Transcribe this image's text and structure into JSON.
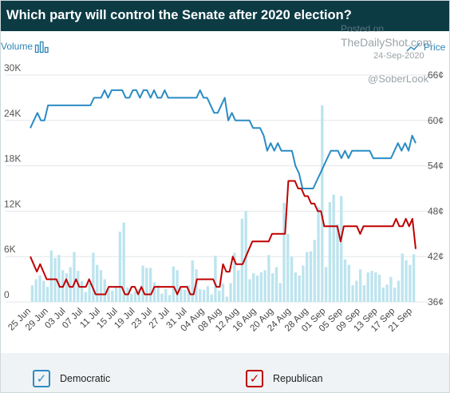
{
  "title": "Which party will control the Senate after 2020 election?",
  "header": {
    "volume_label": "Volume",
    "price_label": "Price"
  },
  "watermark": {
    "posted_on": "Posted on",
    "site": "TheDailyShot.com",
    "date": "24-Sep-2020",
    "handle": "@SoberLook"
  },
  "legend": {
    "democratic": "Democratic",
    "republican": "Republican"
  },
  "colors": {
    "democratic": "#2b8cc4",
    "republican": "#c00000",
    "volume": "#bce4ee",
    "title_bg": "#0c3b44"
  },
  "chart_data": {
    "type": "line",
    "x_tick_labels": [
      "25 Jun",
      "29 Jun",
      "03 Jul",
      "07 Jul",
      "11 Jul",
      "15 Jul",
      "19 Jul",
      "23 Jul",
      "27 Jul",
      "31 Jul",
      "04 Aug",
      "08 Aug",
      "12 Aug",
      "16 Aug",
      "20 Aug",
      "24 Aug",
      "28 Aug",
      "01 Sep",
      "05 Sep",
      "09 Sep",
      "13 Sep",
      "17 Sep",
      "21 Sep"
    ],
    "left_axis": {
      "ticks": [
        "0",
        "6K",
        "12K",
        "18K",
        "24K",
        "30K"
      ],
      "range": [
        0,
        30000
      ]
    },
    "right_axis": {
      "ticks": [
        "36¢",
        "42¢",
        "48¢",
        "54¢",
        "60¢",
        "66¢"
      ],
      "range": [
        36,
        66
      ]
    },
    "grid": true,
    "series": [
      {
        "name": "Democratic",
        "axis": "right",
        "values": [
          59,
          60,
          61,
          60,
          60,
          62,
          62,
          62,
          62,
          62,
          62,
          62,
          62,
          62,
          62,
          62,
          62,
          62,
          63,
          63,
          63,
          64,
          63,
          64,
          64,
          64,
          64,
          63,
          63,
          64,
          64,
          63,
          64,
          64,
          63,
          64,
          63,
          63,
          64,
          63,
          63,
          63,
          63,
          63,
          63,
          63,
          63,
          63,
          64,
          63,
          63,
          62,
          61,
          61,
          62,
          63,
          60,
          61,
          60,
          60,
          60,
          60,
          60,
          59,
          59,
          59,
          58,
          56,
          57,
          56,
          57,
          56,
          56,
          56,
          56,
          54,
          53,
          51,
          51,
          51,
          51,
          52,
          53,
          54,
          55,
          56,
          56,
          56,
          55,
          56,
          55,
          56,
          56,
          56,
          56,
          56,
          56,
          55,
          55,
          55,
          55,
          55,
          55,
          56,
          57,
          56,
          57,
          56,
          58,
          57
        ]
      },
      {
        "name": "Republican",
        "axis": "right",
        "values": [
          42,
          41,
          40,
          41,
          40,
          39,
          39,
          39,
          39,
          38,
          38,
          39,
          38,
          38,
          39,
          38,
          38,
          38,
          39,
          38,
          37,
          37,
          37,
          37,
          38,
          38,
          38,
          38,
          38,
          37,
          37,
          38,
          38,
          37,
          38,
          37,
          37,
          37,
          38,
          38,
          38,
          38,
          38,
          38,
          38,
          37,
          38,
          38,
          38,
          37,
          37,
          39,
          39,
          39,
          39,
          39,
          39,
          38,
          38,
          41,
          40,
          40,
          42,
          41,
          41,
          41,
          42,
          43,
          44,
          44,
          44,
          44,
          44,
          44,
          45,
          45,
          45,
          45,
          45,
          52,
          52,
          52,
          51,
          51,
          50,
          50,
          49,
          49,
          48,
          48,
          46,
          46,
          46,
          46,
          46,
          44,
          46,
          46,
          46,
          46,
          46,
          45,
          46,
          46,
          46,
          46,
          46,
          46,
          46,
          46,
          46,
          46,
          47,
          46,
          46,
          47,
          46,
          47,
          43
        ]
      },
      {
        "name": "Volume",
        "axis": "left",
        "type": "bar",
        "values": [
          2200,
          3000,
          3500,
          2800,
          2000,
          6800,
          5800,
          6200,
          4200,
          3800,
          4600,
          6600,
          4100,
          2800,
          1300,
          2500,
          6500,
          4900,
          4200,
          3000,
          1800,
          1500,
          2100,
          9300,
          10500,
          1900,
          1100,
          1400,
          1700,
          4800,
          4500,
          4500,
          2600,
          2200,
          1100,
          1700,
          900,
          4700,
          4200,
          1800,
          1600,
          2200,
          5500,
          4300,
          1700,
          1600,
          2100,
          1000,
          6100,
          1500,
          2400,
          700,
          2500,
          6500,
          4200,
          11000,
          12000,
          3000,
          3800,
          3500,
          3900,
          4200,
          6200,
          3800,
          4600,
          2500,
          13100,
          9000,
          6000,
          3900,
          3500,
          4800,
          6600,
          6700,
          8200,
          12500,
          26000,
          4600,
          13200,
          14200,
          10300,
          14000,
          5600,
          4900,
          2200,
          2800,
          4300,
          2200,
          3900,
          4100,
          3900,
          3600,
          1900,
          2300,
          3300,
          1900,
          2800,
          6400,
          5500,
          4900,
          6300
        ]
      }
    ]
  }
}
